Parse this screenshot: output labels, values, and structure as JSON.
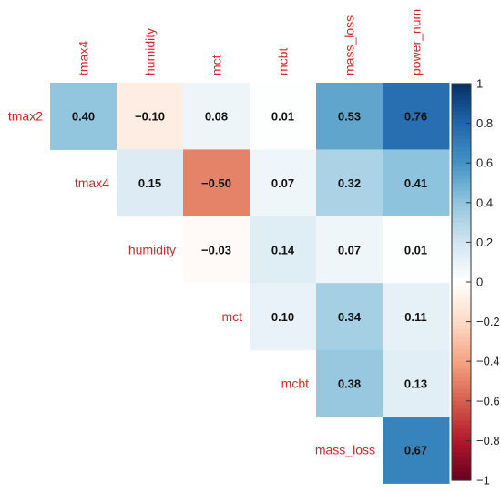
{
  "chart_data": {
    "type": "heatmap",
    "title": "",
    "col_labels": [
      "tmax4",
      "humidity",
      "mct",
      "mcbt",
      "mass_loss",
      "power_num"
    ],
    "row_labels": [
      "tmax2",
      "tmax4",
      "humidity",
      "mct",
      "mcbt",
      "mass_loss"
    ],
    "matrix": [
      [
        0.4,
        -0.1,
        0.08,
        0.01,
        0.53,
        0.76
      ],
      [
        null,
        0.15,
        -0.5,
        0.07,
        0.32,
        0.41
      ],
      [
        null,
        null,
        -0.03,
        0.14,
        0.07,
        0.01
      ],
      [
        null,
        null,
        null,
        0.1,
        0.34,
        0.11
      ],
      [
        null,
        null,
        null,
        null,
        0.38,
        0.13
      ],
      [
        null,
        null,
        null,
        null,
        null,
        0.67
      ]
    ],
    "labels": [
      [
        "0.40",
        "−0.10",
        "0.08",
        "0.01",
        "0.53",
        "0.76"
      ],
      [
        null,
        "0.15",
        "−0.50",
        "0.07",
        "0.32",
        "0.41"
      ],
      [
        null,
        null,
        "−0.03",
        "0.14",
        "0.07",
        "0.01"
      ],
      [
        null,
        null,
        null,
        "0.10",
        "0.34",
        "0.11"
      ],
      [
        null,
        null,
        null,
        null,
        "0.38",
        "0.13"
      ],
      [
        null,
        null,
        null,
        null,
        null,
        "0.67"
      ]
    ],
    "colorbar": {
      "range": [
        -1,
        1
      ],
      "ticks": [
        1,
        0.8,
        0.6,
        0.4,
        0.2,
        0,
        -0.2,
        -0.4,
        -0.6,
        -0.8,
        -1
      ],
      "tick_labels": [
        "1",
        "0.8",
        "0.6",
        "0.4",
        "0.2",
        "0",
        "−0.2",
        "−0.4",
        "−0.6",
        "−0.8",
        "−1"
      ],
      "colormap": [
        "#67001f",
        "#b2182b",
        "#d6604d",
        "#f4a582",
        "#fddbc7",
        "#ffffff",
        "#d1e5f0",
        "#92c5de",
        "#4393c3",
        "#2166ac",
        "#053061"
      ]
    },
    "label_color": "#d62728"
  }
}
